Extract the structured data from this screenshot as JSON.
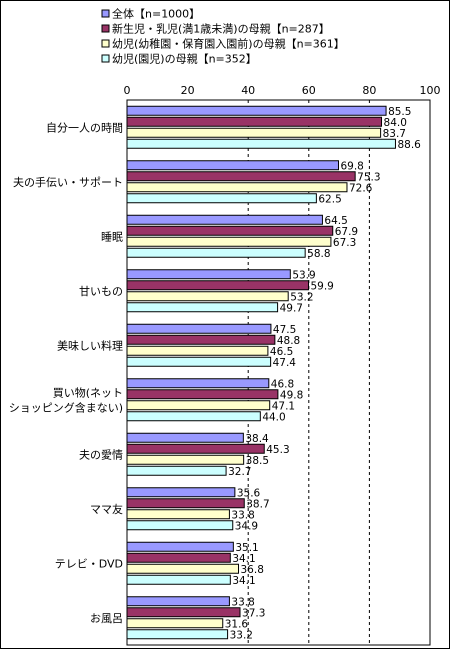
{
  "chart_data": {
    "type": "bar",
    "orientation": "horizontal",
    "xlim": [
      0,
      100
    ],
    "x_ticks": [
      "0",
      "20",
      "40",
      "60",
      "80",
      "100"
    ],
    "grid": "vertical dashed at 40, 60, 80",
    "legend_position": "top-left",
    "categories": [
      [
        "自分一人の時間"
      ],
      [
        "夫の手伝い・サポート"
      ],
      [
        "睡眠"
      ],
      [
        "甘いもの"
      ],
      [
        "美味しい料理"
      ],
      [
        "買い物(ネット",
        "ショッピング含まない)"
      ],
      [
        "夫の愛情"
      ],
      [
        "ママ友"
      ],
      [
        "テレビ・DVD"
      ],
      [
        "お風呂"
      ]
    ],
    "series": [
      {
        "name": "全体【n=1000】",
        "color": "#9999ff",
        "values": [
          85.5,
          69.8,
          64.5,
          53.9,
          47.5,
          46.8,
          38.4,
          35.6,
          35.1,
          33.8
        ]
      },
      {
        "name": "新生児・乳児(満1歳未満)の母親【n=287】",
        "color": "#993366",
        "values": [
          84.0,
          75.3,
          67.9,
          59.9,
          48.8,
          49.8,
          45.3,
          38.7,
          34.1,
          37.3
        ]
      },
      {
        "name": "幼児(幼稚園・保育園入園前)の母親【n=361】",
        "color": "#ffffcc",
        "values": [
          83.7,
          72.6,
          67.3,
          53.2,
          46.5,
          47.1,
          38.5,
          33.8,
          36.8,
          31.6
        ]
      },
      {
        "name": "幼児(園児)の母親【n=352】",
        "color": "#ccffff",
        "values": [
          88.6,
          62.5,
          58.8,
          49.7,
          47.4,
          44.0,
          32.7,
          34.9,
          34.1,
          33.2
        ]
      }
    ]
  }
}
